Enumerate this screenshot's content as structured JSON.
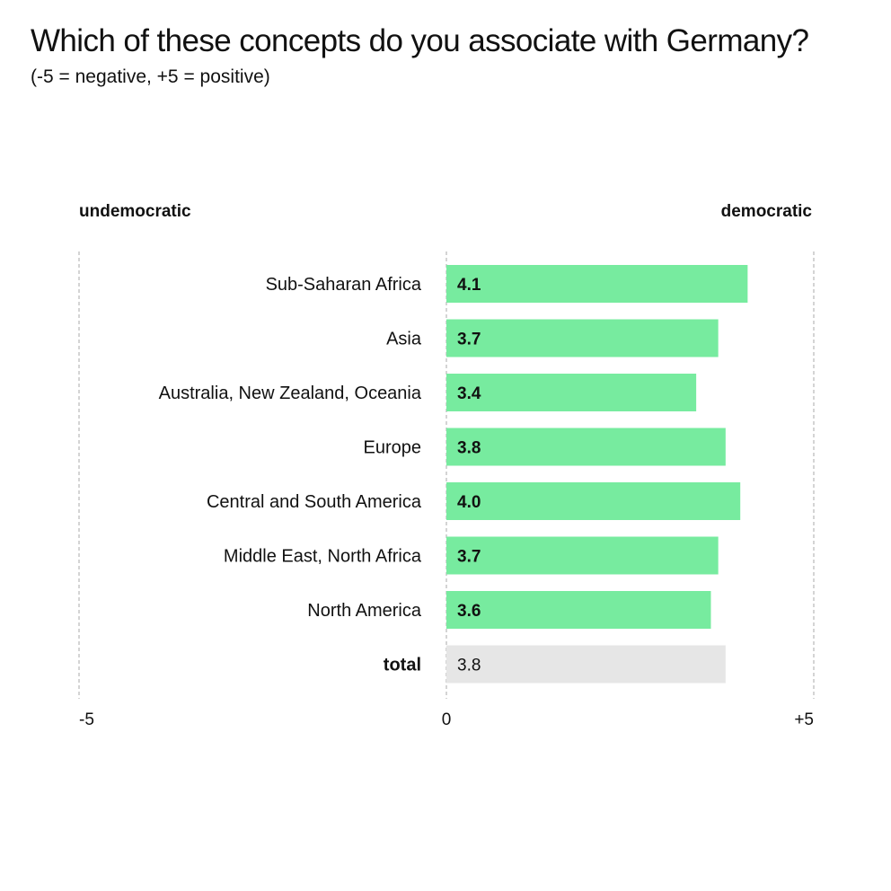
{
  "chart_data": {
    "type": "bar",
    "orientation": "horizontal",
    "title": "Which of these concepts do you associate with Germany?",
    "subtitle": "(-5 = negative, +5 = positive)",
    "left_pole": "undemocratic",
    "right_pole": "democratic",
    "categories": [
      "Sub-Saharan Africa",
      "Asia",
      "Australia, New Zealand, Oceania",
      "Europe",
      "Central and South America",
      "Middle East, North Africa",
      "North America",
      "total"
    ],
    "values": [
      4.1,
      3.7,
      3.4,
      3.8,
      4.0,
      3.7,
      3.6,
      3.8
    ],
    "value_labels": [
      "4.1",
      "3.7",
      "3.4",
      "3.8",
      "4.0",
      "3.7",
      "3.6",
      "3.8"
    ],
    "xlim": [
      -5,
      5
    ],
    "x_ticks": [
      -5,
      0,
      5
    ],
    "x_tick_labels": [
      "-5",
      "0",
      "+5"
    ],
    "colors": {
      "bar": "#77eb9f",
      "total_bar": "#e6e6e6",
      "gridline": "#aaaaaa"
    }
  }
}
